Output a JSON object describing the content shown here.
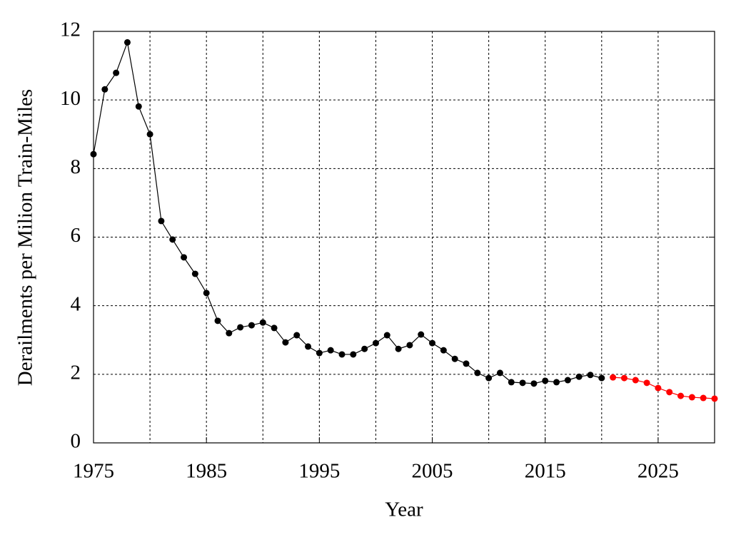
{
  "chart_data": {
    "type": "line",
    "x_label": "Year",
    "y_label": "Derailments per Milion Train-Miles",
    "xlim": [
      1975,
      2030
    ],
    "xticks": [
      1975,
      1985,
      1995,
      2005,
      2015,
      2025
    ],
    "x_minor_grid": [
      1980,
      1985,
      1990,
      1995,
      2000,
      2005,
      2010,
      2015,
      2020,
      2025
    ],
    "ylim": [
      0,
      12
    ],
    "yticks": [
      0,
      2,
      4,
      6,
      8,
      10,
      12
    ],
    "grid": true,
    "series": [
      {
        "color": "#000000",
        "x": [
          1975,
          1976,
          1977,
          1978,
          1979,
          1980,
          1981,
          1982,
          1983,
          1984,
          1985,
          1986,
          1987,
          1988,
          1989,
          1990,
          1991,
          1992,
          1993,
          1994,
          1995,
          1996,
          1997,
          1998,
          1999,
          2000,
          2001,
          2002,
          2003,
          2004,
          2005,
          2006,
          2007,
          2008,
          2009,
          2010,
          2011,
          2012,
          2013,
          2014,
          2015,
          2016,
          2017,
          2018,
          2019,
          2020
        ],
        "values": [
          8.42,
          10.31,
          10.79,
          11.68,
          9.81,
          9.0,
          6.47,
          5.93,
          5.41,
          4.93,
          4.37,
          3.56,
          3.2,
          3.37,
          3.43,
          3.51,
          3.35,
          2.93,
          3.14,
          2.81,
          2.62,
          2.7,
          2.58,
          2.58,
          2.74,
          2.91,
          3.14,
          2.74,
          2.85,
          3.16,
          2.91,
          2.7,
          2.45,
          2.31,
          2.04,
          1.89,
          2.04,
          1.77,
          1.75,
          1.73,
          1.81,
          1.77,
          1.83,
          1.93,
          1.98,
          1.89
        ]
      },
      {
        "color": "#ff0000",
        "x": [
          2021,
          2022,
          2023,
          2024,
          2025,
          2026,
          2027,
          2028,
          2029,
          2030
        ],
        "values": [
          1.91,
          1.89,
          1.83,
          1.75,
          1.6,
          1.48,
          1.37,
          1.33,
          1.31,
          1.29
        ]
      }
    ]
  }
}
